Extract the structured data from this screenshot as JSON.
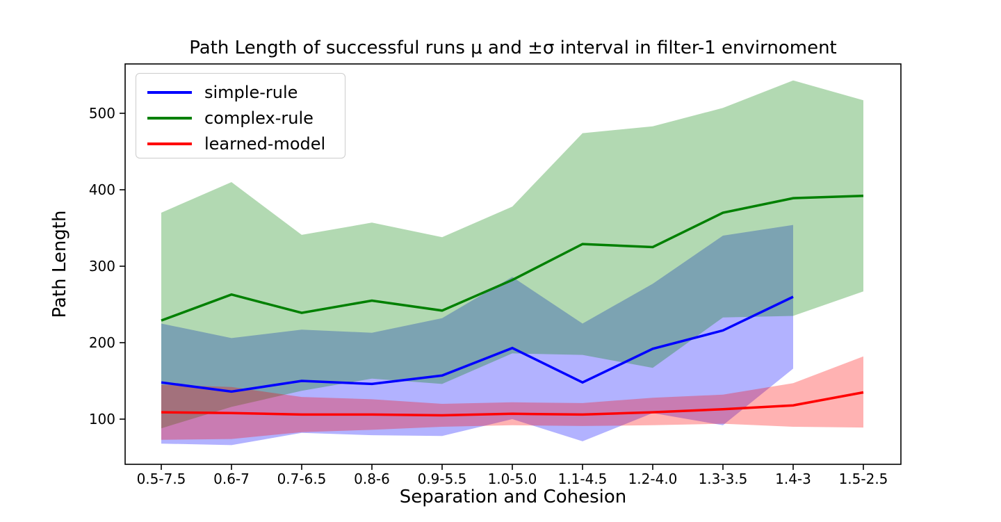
{
  "title": "Path Length of successful runs μ and ±σ interval in filter-1 envirnoment",
  "chart_data": {
    "type": "line",
    "title": "Path Length of successful runs μ and ±σ interval in filter-1 envirnoment",
    "xlabel": "Separation and Cohesion",
    "ylabel": "Path Length",
    "categories": [
      "0.5-7.5",
      "0.6-7",
      "0.7-6.5",
      "0.8-6",
      "0.9-5.5",
      "1.0-5.0",
      "1.1-4.5",
      "1.2-4.0",
      "1.3-3.5",
      "1.4-3",
      "1.5-2.5"
    ],
    "y_ticks": [
      100,
      200,
      300,
      400,
      500
    ],
    "ylim": [
      41,
      565
    ],
    "grid": false,
    "legend_position": "upper left",
    "band_opacity": 0.3,
    "band_note": "shaded region is mean ± one standard deviation",
    "series": [
      {
        "name": "simple-rule",
        "color": "#0000ff",
        "mean": [
          148,
          136,
          150,
          146,
          157,
          193,
          148,
          192,
          216,
          260
        ],
        "upper": [
          225,
          206,
          217,
          213,
          232,
          286,
          225,
          277,
          340,
          354
        ],
        "lower": [
          68,
          66,
          82,
          79,
          78,
          100,
          71,
          108,
          92,
          166
        ]
      },
      {
        "name": "complex-rule",
        "color": "#008000",
        "mean": [
          229,
          263,
          239,
          255,
          242,
          282,
          329,
          325,
          370,
          389,
          392
        ],
        "upper": [
          370,
          410,
          341,
          357,
          338,
          378,
          474,
          483,
          507,
          543,
          517
        ],
        "lower": [
          88,
          116,
          137,
          153,
          146,
          186,
          184,
          167,
          233,
          235,
          267
        ]
      },
      {
        "name": "learned-model",
        "color": "#ff0000",
        "mean": [
          109,
          108,
          106,
          106,
          105,
          107,
          106,
          109,
          113,
          118,
          135
        ],
        "upper": [
          145,
          142,
          129,
          126,
          120,
          122,
          121,
          128,
          132,
          147,
          182
        ],
        "lower": [
          73,
          74,
          83,
          86,
          90,
          92,
          91,
          92,
          94,
          90,
          89
        ]
      }
    ]
  }
}
